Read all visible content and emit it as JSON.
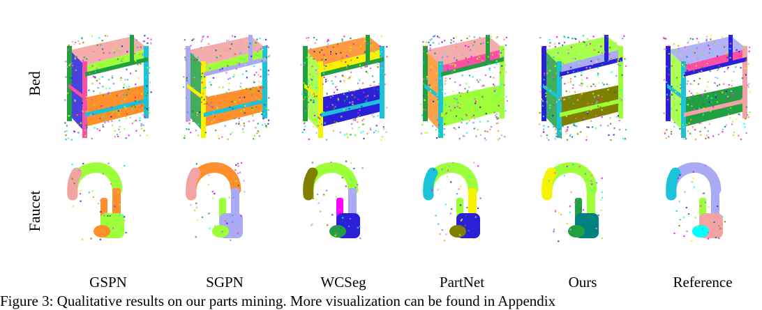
{
  "figure": {
    "row_labels": [
      "Bed",
      "Faucet"
    ],
    "columns": [
      "GSPN",
      "SGPN",
      "WCSeg",
      "PartNet",
      "Ours",
      "Reference"
    ],
    "caption": "Figure 3: Qualitative results on our parts mining. More visualization can be found in Appendix"
  },
  "palette": [
    "#9dff3a",
    "#ff4fa3",
    "#2a20d8",
    "#19c3d8",
    "#ff8f2a",
    "#f7f200",
    "#e05fe0",
    "#aaaaf5",
    "#f4a3a3",
    "#20a040",
    "#808000",
    "#00ffff",
    "#ff00ff",
    "#008080",
    "#7fff00",
    "#8080ff"
  ],
  "panels": [
    {
      "bed_colors": [
        "#9dff3a",
        "#ff8f2a",
        "#20a040",
        "#f4a3a3",
        "#2a20d8",
        "#ff4fa3",
        "#19c3d8"
      ],
      "faucet_colors": [
        "#9dff3a",
        "#f4a3a3",
        "#ff8f2a",
        "#ff8f2a",
        "#9dff3a",
        "#ff8f2a"
      ]
    },
    {
      "bed_colors": [
        "#9dff3a",
        "#ff8f2a",
        "#aaaaf5",
        "#f4a3a3",
        "#20a040",
        "#f7f200",
        "#19c3d8"
      ],
      "faucet_colors": [
        "#ff8f2a",
        "#f4a3a3",
        "#aaaaf5",
        "#9dff3a",
        "#aaaaf5",
        "#9dff3a"
      ]
    },
    {
      "bed_colors": [
        "#f7f200",
        "#2a20d8",
        "#20a040",
        "#ff8f2a",
        "#9dff3a",
        "#f7f200",
        "#19c3d8"
      ],
      "faucet_colors": [
        "#9dff3a",
        "#808000",
        "#aaaaf5",
        "#ff00ff",
        "#2a20d8",
        "#20a040"
      ]
    },
    {
      "bed_colors": [
        "#ff4fa3",
        "#9dff3a",
        "#20a040",
        "#f4a3a3",
        "#ff8f2a",
        "#19c3d8",
        "#9dff3a"
      ],
      "faucet_colors": [
        "#9dff3a",
        "#19c3d8",
        "#f7f200",
        "#9dff3a",
        "#2a20d8",
        "#808000"
      ]
    },
    {
      "bed_colors": [
        "#aaaaf5",
        "#808000",
        "#2a20d8",
        "#9dff3a",
        "#20a040",
        "#19c3d8",
        "#9dff3a"
      ],
      "faucet_colors": [
        "#9dff3a",
        "#f7f200",
        "#9dff3a",
        "#20a040",
        "#008080",
        "#20a040"
      ]
    },
    {
      "bed_colors": [
        "#ff4fa3",
        "#20a040",
        "#2a20d8",
        "#aaaaf5",
        "#9dff3a",
        "#19c3d8",
        "#f4a3a3"
      ],
      "faucet_colors": [
        "#aaaaf5",
        "#19c3d8",
        "#aaaaf5",
        "#9dff3a",
        "#f4a3a3",
        "#00ffff"
      ]
    }
  ]
}
